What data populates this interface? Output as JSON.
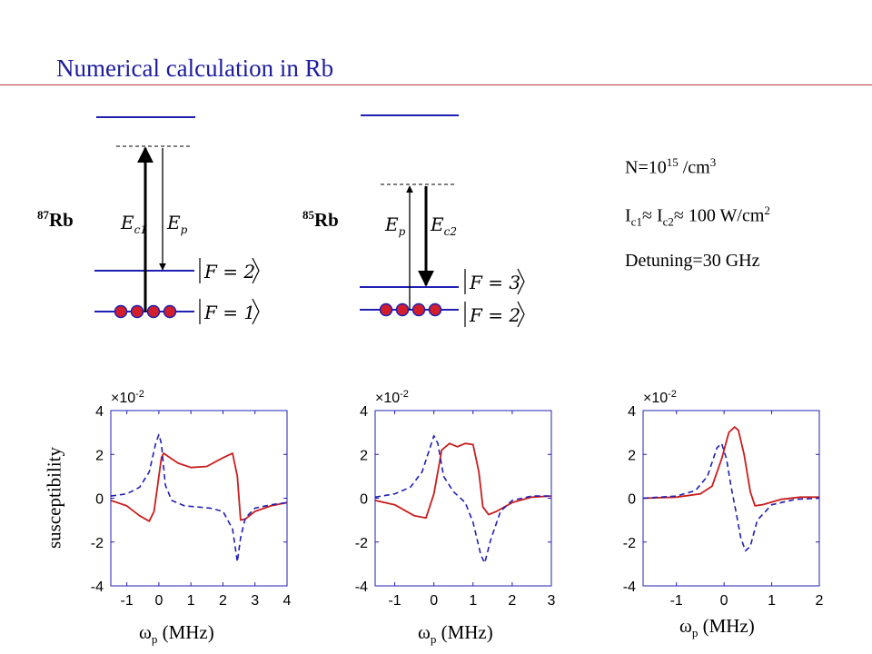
{
  "slide": {
    "title": "Numerical calculation in Rb"
  },
  "levels": {
    "rb87": {
      "mass": "87",
      "element": "Rb",
      "upper_ket": "F = 2",
      "lower_ket": "F = 1",
      "arrow_up": "E",
      "arrow_up_sub": "c1",
      "arrow_down": "E",
      "arrow_down_sub": "p"
    },
    "rb85": {
      "mass": "85",
      "element": "Rb",
      "upper_ket": "F = 3",
      "lower_ket": "F = 2",
      "arrow_up": "E",
      "arrow_up_sub": "p",
      "arrow_down": "E",
      "arrow_down_sub": "c2"
    }
  },
  "params": {
    "density_prefix": "N=10",
    "density_exp": "15",
    "density_unit": " /cm",
    "density_unit_exp": "3",
    "intensity_a": "I",
    "intensity_a_sub": "c1",
    "approx_1": "≈ ",
    "intensity_b": "I",
    "intensity_b_sub": "c2",
    "approx_2": "≈ ",
    "intensity_value": "100 W/cm",
    "intensity_exp": "2",
    "detuning": "Detuning=30 GHz"
  },
  "colors": {
    "title": "#1c1c9e",
    "rule": "#c0393b",
    "level_line": "#1f1fb4",
    "atom_fill": "#d21e2a",
    "atom_stroke": "#1f1fb4",
    "axes": "#1f1fb4",
    "series_solid": "#c81e1e",
    "series_dashed": "#1f1fb4"
  },
  "chart_common": {
    "ylabel": "susceptibility",
    "xlabel_symbol": "ω",
    "xlabel_sub": "p",
    "xlabel_unit": " (MHz)",
    "scale_text": "×10",
    "scale_exp": "-2"
  },
  "chart_data": [
    {
      "type": "line",
      "xlim": [
        -1.5,
        4
      ],
      "ylim": [
        -4,
        4
      ],
      "xticks": [
        -1,
        0,
        1,
        2,
        3,
        4
      ],
      "yticks": [
        -4,
        -2,
        0,
        2,
        4
      ],
      "series": [
        {
          "style": "solid",
          "color": "#c81e1e",
          "x": [
            -1.5,
            -1.0,
            -0.6,
            -0.3,
            -0.15,
            0.0,
            0.08,
            0.15,
            0.3,
            0.6,
            1.0,
            1.5,
            2.0,
            2.3,
            2.45,
            2.55,
            2.7,
            3.0,
            3.5,
            4.0
          ],
          "y": [
            -0.1,
            -0.35,
            -0.8,
            -1.05,
            -0.6,
            1.0,
            1.85,
            2.05,
            1.9,
            1.6,
            1.4,
            1.45,
            1.85,
            2.05,
            1.0,
            -1.0,
            -0.95,
            -0.6,
            -0.35,
            -0.2
          ]
        },
        {
          "style": "dashed",
          "color": "#1f1fb4",
          "x": [
            -1.5,
            -1.0,
            -0.6,
            -0.3,
            -0.1,
            0.0,
            0.08,
            0.2,
            0.4,
            0.8,
            1.2,
            1.6,
            2.0,
            2.3,
            2.45,
            2.55,
            2.7,
            3.0,
            3.5,
            4.0
          ],
          "y": [
            0.1,
            0.2,
            0.5,
            1.2,
            2.5,
            2.9,
            2.5,
            0.6,
            -0.1,
            -0.35,
            -0.4,
            -0.45,
            -0.6,
            -1.4,
            -2.9,
            -1.8,
            -0.9,
            -0.45,
            -0.3,
            -0.2
          ]
        }
      ]
    },
    {
      "type": "line",
      "xlim": [
        -1.5,
        3
      ],
      "ylim": [
        -4,
        4
      ],
      "xticks": [
        -1,
        0,
        1,
        2,
        3
      ],
      "yticks": [
        -4,
        -2,
        0,
        2,
        4
      ],
      "series": [
        {
          "style": "solid",
          "color": "#c81e1e",
          "x": [
            -1.5,
            -1.0,
            -0.5,
            -0.2,
            0.0,
            0.2,
            0.4,
            0.6,
            0.8,
            1.0,
            1.15,
            1.25,
            1.4,
            1.6,
            2.0,
            2.5,
            3.0
          ],
          "y": [
            -0.1,
            -0.3,
            -0.8,
            -0.9,
            0.2,
            2.2,
            2.5,
            2.35,
            2.5,
            2.45,
            1.2,
            -0.4,
            -0.75,
            -0.6,
            -0.2,
            0.05,
            0.1
          ]
        },
        {
          "style": "dashed",
          "color": "#1f1fb4",
          "x": [
            -1.5,
            -1.0,
            -0.6,
            -0.3,
            -0.1,
            0.0,
            0.1,
            0.25,
            0.5,
            0.8,
            1.0,
            1.2,
            1.3,
            1.45,
            1.7,
            2.0,
            2.5,
            3.0
          ],
          "y": [
            0.05,
            0.2,
            0.5,
            1.2,
            2.3,
            2.85,
            2.5,
            1.0,
            0.3,
            -0.2,
            -1.1,
            -2.6,
            -2.95,
            -1.9,
            -0.6,
            -0.1,
            0.1,
            0.1
          ]
        }
      ]
    },
    {
      "type": "line",
      "xlim": [
        -1.7,
        2
      ],
      "ylim": [
        -4,
        4
      ],
      "xticks": [
        -1,
        0,
        1,
        2
      ],
      "yticks": [
        -4,
        -2,
        0,
        2,
        4
      ],
      "series": [
        {
          "style": "solid",
          "color": "#c81e1e",
          "x": [
            -1.7,
            -1.0,
            -0.5,
            -0.25,
            -0.05,
            0.1,
            0.22,
            0.3,
            0.42,
            0.55,
            0.65,
            0.8,
            1.2,
            1.6,
            2.0
          ],
          "y": [
            0.0,
            0.05,
            0.2,
            0.55,
            1.8,
            3.0,
            3.25,
            3.1,
            2.0,
            0.3,
            -0.35,
            -0.3,
            -0.05,
            0.05,
            0.05
          ]
        },
        {
          "style": "dashed",
          "color": "#1f1fb4",
          "x": [
            -1.7,
            -1.0,
            -0.6,
            -0.35,
            -0.15,
            -0.05,
            0.05,
            0.15,
            0.25,
            0.35,
            0.45,
            0.55,
            0.7,
            1.0,
            1.5,
            2.0
          ],
          "y": [
            0.0,
            0.1,
            0.35,
            1.0,
            2.3,
            2.5,
            1.8,
            0.5,
            -0.6,
            -1.8,
            -2.4,
            -2.2,
            -1.0,
            -0.3,
            -0.05,
            0.0
          ]
        }
      ]
    }
  ]
}
